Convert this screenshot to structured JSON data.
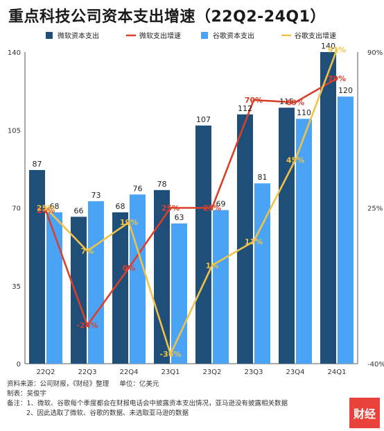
{
  "title": "重点科技公司资本支出增速（22Q2-24Q1）",
  "chart_data": {
    "type": "bar",
    "categories": [
      "22Q2",
      "22Q3",
      "22Q4",
      "23Q1",
      "23Q2",
      "23Q3",
      "23Q4",
      "24Q1"
    ],
    "series": [
      {
        "name": "微软资本支出",
        "type": "bar",
        "axis": "left",
        "color": "#1f4e79",
        "values": [
          87,
          66,
          68,
          78,
          107,
          112,
          115,
          140
        ],
        "labels": [
          "87",
          "66",
          "68",
          "78",
          "107",
          "112",
          "115",
          "140"
        ]
      },
      {
        "name": "微软支出增速",
        "type": "line",
        "axis": "right",
        "color": "#d9402a",
        "values": [
          24,
          -24,
          0,
          25,
          25,
          70,
          69,
          79
        ],
        "labels": [
          "24%",
          "-24%",
          "0%",
          "25%",
          "25%",
          "70%",
          "69%",
          "79%"
        ]
      },
      {
        "name": "谷歌资本支出",
        "type": "bar",
        "axis": "left",
        "color": "#4ba3f5",
        "values": [
          68,
          73,
          76,
          63,
          69,
          81,
          110,
          120
        ],
        "labels": [
          "68",
          "73",
          "76",
          "63",
          "69",
          "81",
          "110",
          "120"
        ]
      },
      {
        "name": "谷歌支出增速",
        "type": "line",
        "axis": "right",
        "color": "#f0c246",
        "values": [
          25,
          7,
          19,
          -36,
          1,
          11,
          45,
          91
        ],
        "labels": [
          "25%",
          "7%",
          "19%",
          "-36%",
          "1%",
          "11%",
          "45%",
          "91%"
        ]
      }
    ],
    "left_axis": {
      "ticks": [
        "0",
        "35",
        "70",
        "105",
        "140"
      ],
      "ylim": [
        0,
        140
      ]
    },
    "right_axis": {
      "ticks": [
        "-40%",
        "25%",
        "90%"
      ],
      "ylim": [
        -40,
        90
      ]
    },
    "legend_position": "top"
  },
  "footer": {
    "source": "资料来源：公司财报，《财经》整理",
    "unit": "单位：亿美元",
    "maker": "制表：吴俊宇",
    "note1": "备注：1、微软、谷歌每个季度都会在财报电话会中披露资本支出情况，亚马逊没有披露相关数据",
    "note2": "2、因此选取了微软、谷歌的数据、未选取亚马逊的数据"
  },
  "logo": "财经"
}
